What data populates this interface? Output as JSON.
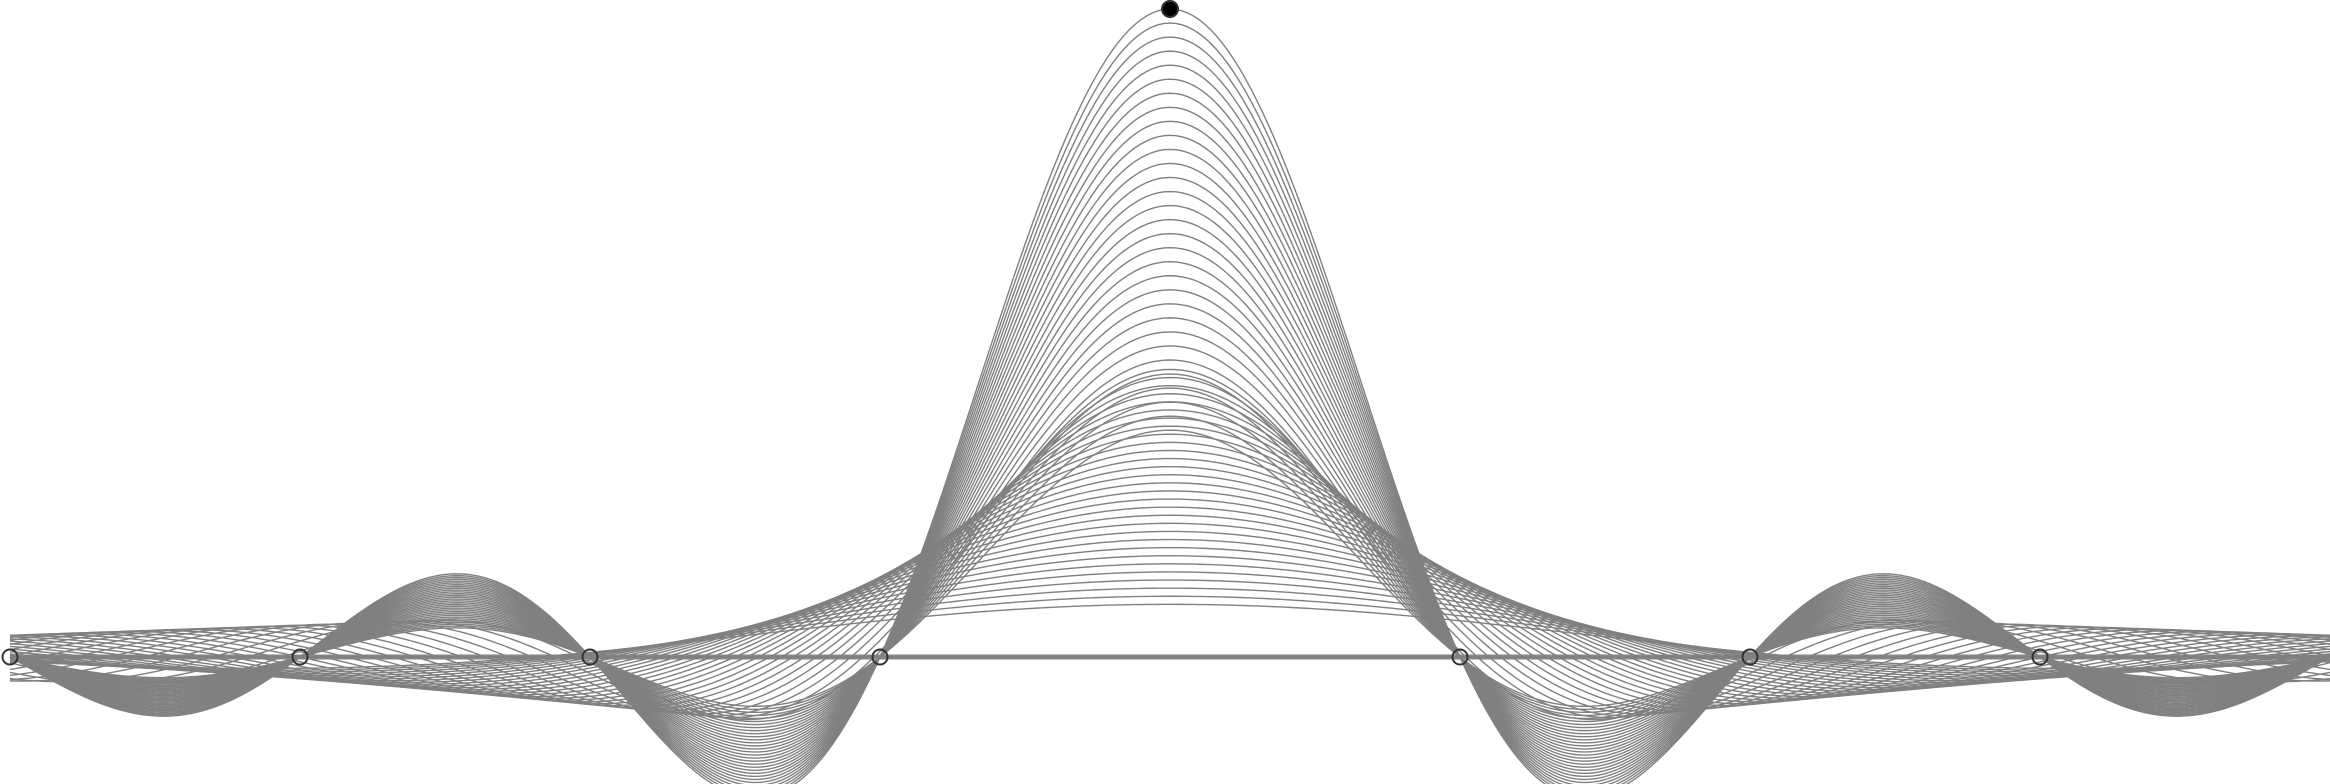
{
  "chart_data": {
    "type": "line",
    "description_visible": "",
    "x_range": [
      -4,
      4
    ],
    "y_range": [
      -0.45,
      2.25
    ],
    "baseline_y": 0,
    "grid": false,
    "legend": "none",
    "colors": {
      "curve": "#808080",
      "marker_stroke": "#333333",
      "marker_fill_active": "#000000",
      "background": "#ffffff"
    },
    "family": {
      "kind": "sinc-scaled",
      "peak_x": 0,
      "peak_y": 2.2,
      "samples": 61,
      "scale_min": 0.35,
      "scale_max": 1.0
    },
    "markers": [
      {
        "x": -4,
        "y": 0,
        "filled": false
      },
      {
        "x": -3,
        "y": 0,
        "filled": false
      },
      {
        "x": -2,
        "y": 0,
        "filled": false
      },
      {
        "x": -1,
        "y": 0,
        "filled": false
      },
      {
        "x": 0,
        "y": 2.2,
        "filled": true
      },
      {
        "x": 1,
        "y": 0,
        "filled": false
      },
      {
        "x": 2,
        "y": 0,
        "filled": false
      },
      {
        "x": 3,
        "y": 0,
        "filled": false
      }
    ]
  }
}
